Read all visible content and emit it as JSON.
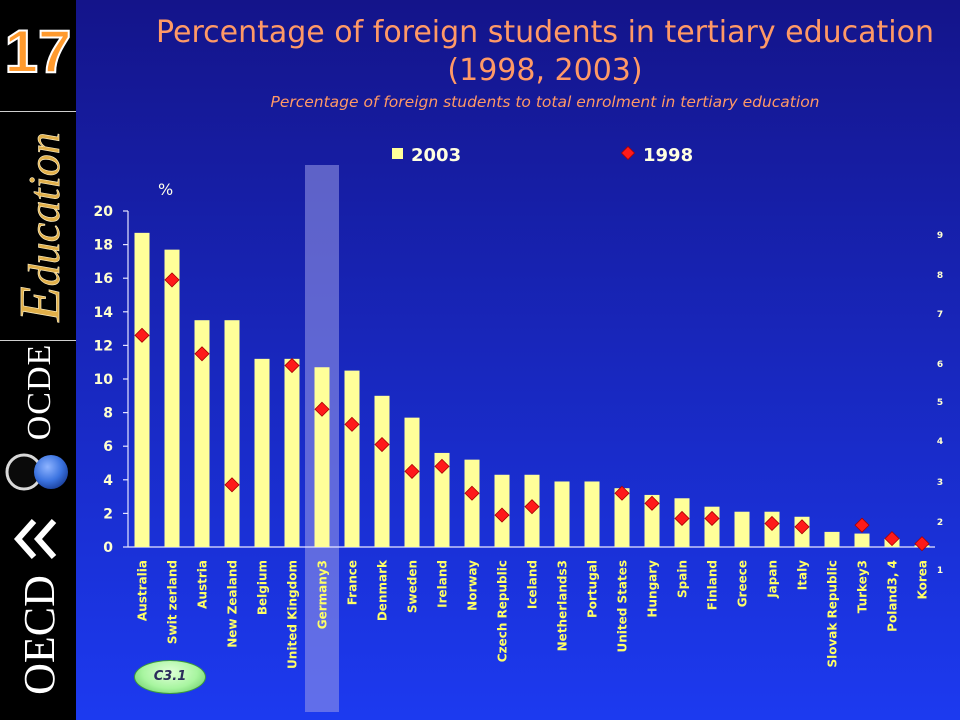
{
  "sidebar": {
    "slide_number": "17",
    "education_logo": "Education",
    "ocde_wordmark": "OCDE",
    "oecd_wordmark": "OECD"
  },
  "badge": {
    "label": "C3.1"
  },
  "colors": {
    "background_top": "#14148a",
    "background_bottom": "#1c3af0",
    "sidebar": "#000000",
    "title": "#ff9966",
    "bar_2003": "#ffff99",
    "marker_1998": "#ff1a1a",
    "axis_text": "#ffffd0",
    "category_text": "#ffff66",
    "highlight_band": "#9a9ae8",
    "badge_fill": "#a8f5a0",
    "logo_gold": "#e2b04a",
    "logo_blue": "#3b73e0"
  },
  "chart_data": {
    "type": "bar",
    "title": [
      "Percentage of foreign students in tertiary education",
      "(1998, 2003)"
    ],
    "subtitle": "Percentage of foreign students to total enrolment in tertiary education",
    "ylabel": "%",
    "ylim": [
      0,
      20
    ],
    "yticks": [
      0,
      2,
      4,
      6,
      8,
      10,
      12,
      14,
      16,
      18,
      20
    ],
    "grid": false,
    "legend": {
      "position": "top"
    },
    "categories": [
      "Australia",
      "Swit zerland",
      "Austria",
      "New Zealand",
      "Belgium",
      "United Kingdom",
      "Germany3",
      "France",
      "Denmark",
      "Sweden",
      "Ireland",
      "Norway",
      "Czech Republic",
      "Iceland",
      "Netherlands3",
      "Portugal",
      "United States",
      "Hungary",
      "Spain",
      "Finland",
      "Greece",
      "Japan",
      "Italy",
      "Slovak Republic",
      "Turkey3",
      "Poland3, 4",
      "Korea"
    ],
    "series": [
      {
        "name": "2003",
        "type": "bar",
        "values": [
          18.7,
          17.7,
          13.5,
          13.5,
          11.2,
          11.2,
          10.7,
          10.5,
          9.0,
          7.7,
          5.6,
          5.2,
          4.3,
          4.3,
          3.9,
          3.9,
          3.5,
          3.1,
          2.9,
          2.4,
          2.1,
          2.1,
          1.8,
          0.9,
          0.8,
          0.5,
          0.1
        ]
      },
      {
        "name": "1998",
        "type": "scatter",
        "marker": "diamond",
        "values": [
          12.6,
          15.9,
          11.5,
          3.7,
          null,
          10.8,
          8.2,
          7.3,
          6.1,
          4.5,
          4.8,
          3.2,
          1.9,
          2.4,
          null,
          null,
          3.2,
          2.6,
          1.7,
          1.7,
          null,
          1.4,
          1.2,
          null,
          1.3,
          0.5,
          0.2
        ]
      }
    ],
    "highlighted_category_index": 6,
    "right_axis": {
      "tick_labels": [
        "9",
        "8",
        "7",
        "6",
        "5",
        "4",
        "3",
        "2",
        "1"
      ]
    }
  }
}
